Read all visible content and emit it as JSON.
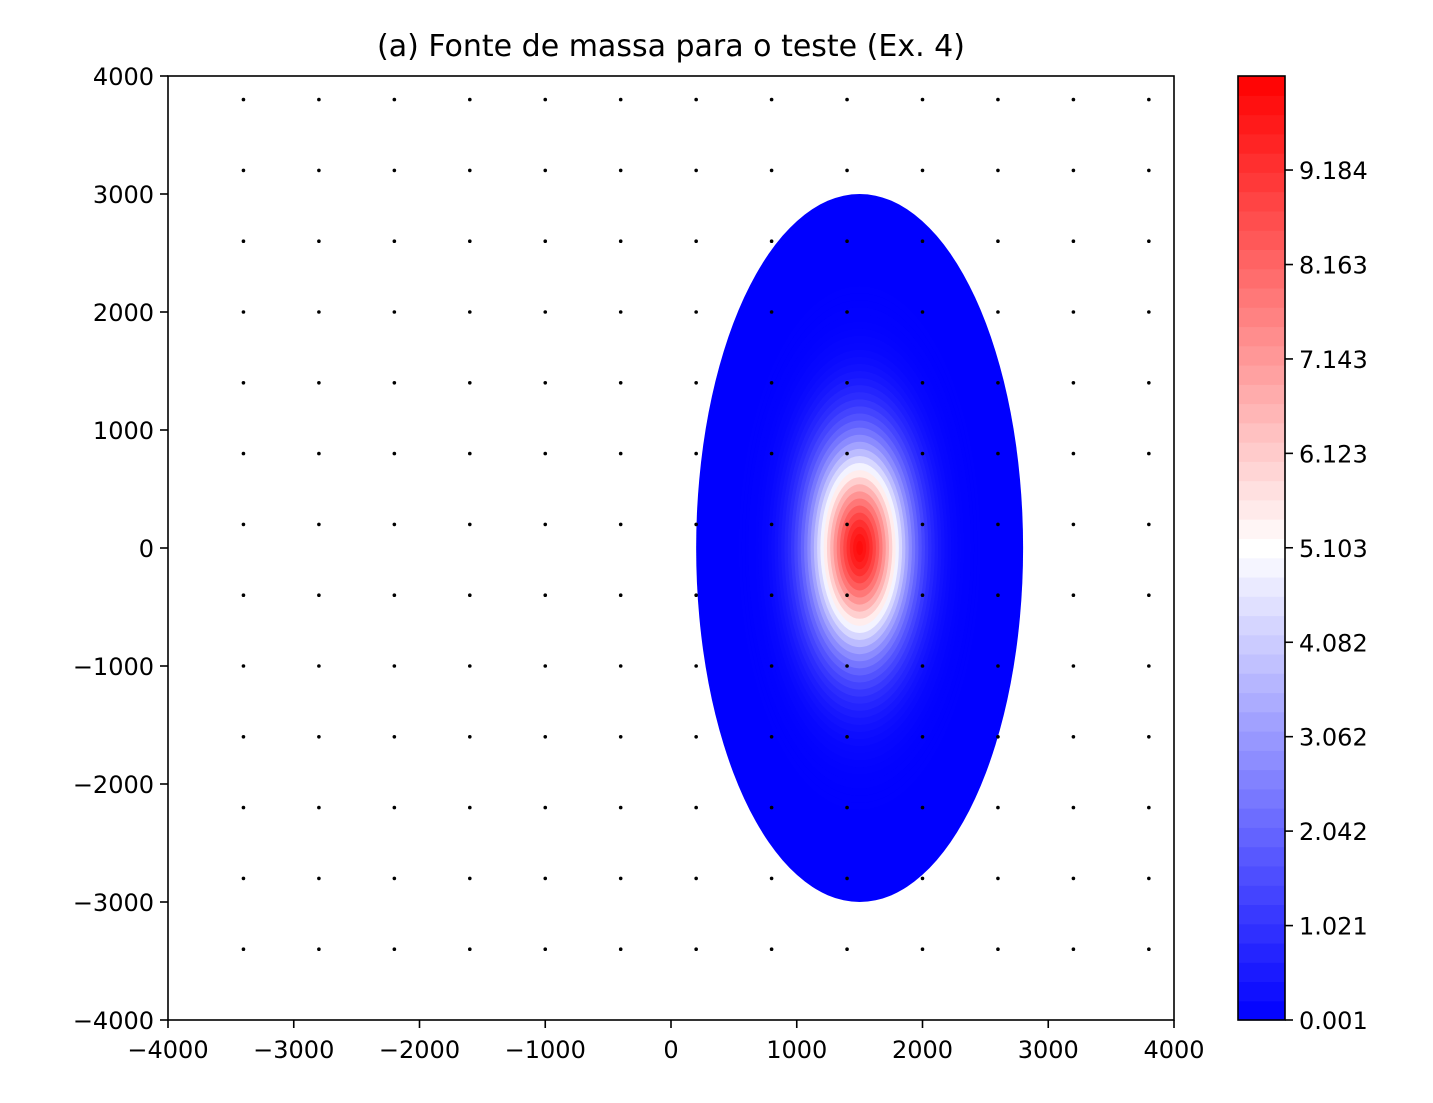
{
  "chart_data": {
    "type": "heatmap",
    "title": "(a) Fonte de massa para o teste (Ex. 4)",
    "xlabel": "",
    "ylabel": "",
    "xlim": [
      -4000,
      4000
    ],
    "ylim": [
      -4000,
      4000
    ],
    "x_ticks": [
      "−4000",
      "−3000",
      "−2000",
      "−1000",
      "0",
      "1000",
      "2000",
      "3000",
      "4000"
    ],
    "y_ticks": [
      "4000",
      "3000",
      "2000",
      "1000",
      "0",
      "−1000",
      "−2000",
      "−3000",
      "−4000"
    ],
    "grid": false,
    "source": {
      "shape": "ellipse",
      "center": [
        1500,
        0
      ],
      "semi_axes": [
        1300,
        3000
      ],
      "peak_value": 10.0,
      "edge_value": 0.001
    },
    "stations": {
      "x": [
        -3400,
        -2800,
        -2200,
        -1600,
        -1000,
        -400,
        200,
        800,
        1400,
        2000,
        2600,
        3200,
        3800
      ],
      "y": [
        3800,
        3200,
        2600,
        2000,
        1400,
        800,
        200,
        -400,
        -1000,
        -1600,
        -2200,
        -2800,
        -3400
      ]
    },
    "colorbar": {
      "colormap": "bwr",
      "range": [
        0.001,
        10.2
      ],
      "tick_values": [
        0.001,
        1.021,
        2.042,
        3.062,
        4.082,
        5.103,
        6.123,
        7.143,
        8.163,
        9.184
      ],
      "tick_labels": [
        "0.001",
        "1.021",
        "2.042",
        "3.062",
        "4.082",
        "5.103",
        "6.123",
        "7.143",
        "8.163",
        "9.184"
      ],
      "low_color": "#0000ff",
      "mid_color": "#ffffff",
      "high_color": "#ff0000"
    }
  }
}
